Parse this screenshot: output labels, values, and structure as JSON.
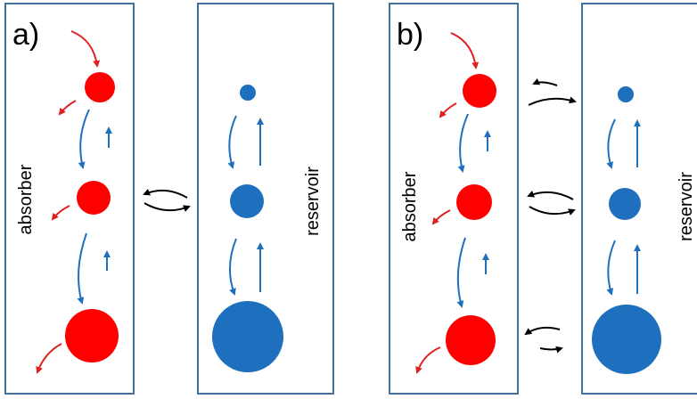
{
  "panels": [
    {
      "label": "a)",
      "absorber_label": "absorber",
      "reservoir_label": "reservoir"
    },
    {
      "label": "b)",
      "absorber_label": "absorber",
      "reservoir_label": "reservoir"
    }
  ],
  "colors": {
    "absorber": "#ff0000",
    "reservoir": "#1f6fbf",
    "decay_arrow": "#e02020",
    "transition_arrow": "#1f6fbf",
    "exchange_arrow": "#000000",
    "box_border": "#41719c"
  }
}
